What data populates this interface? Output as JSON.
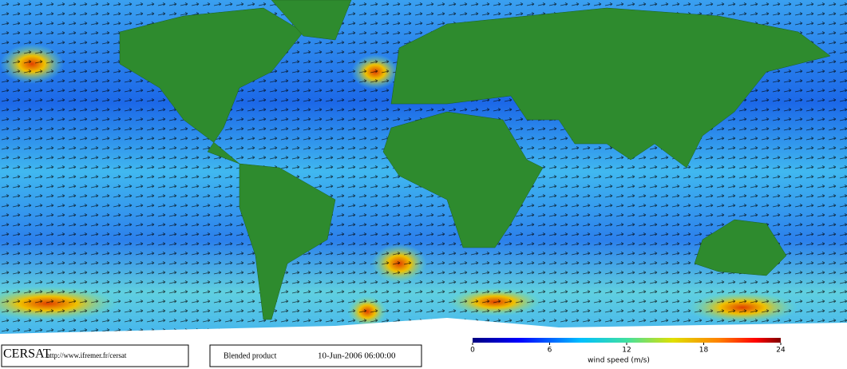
{
  "footer": {
    "logo": "CERSAT",
    "url": "http://www.ifremer.fr/cersat",
    "product": "Blended product",
    "date": "10-Jun-2006 06:00:00"
  },
  "colorbar": {
    "label": "wind speed (m/s)",
    "lim": [
      0,
      24
    ],
    "ticks": [
      0,
      6,
      12,
      18,
      24
    ]
  }
}
